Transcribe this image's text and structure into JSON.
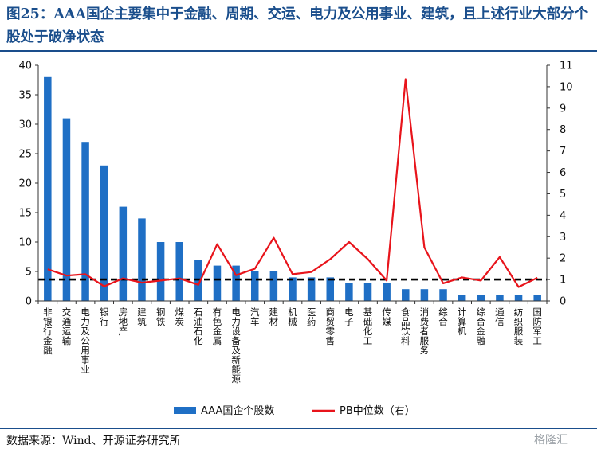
{
  "figure": {
    "title": "图25：AAA国企主要集中于金融、周期、交运、电力及公用事业、建筑，且上述行业大部分个股处于破净状态",
    "source": "数据来源：Wind、开源证券研究所",
    "watermark": "格隆汇"
  },
  "colors": {
    "bar": "#1f6fc5",
    "line": "#e8141b",
    "reference": "#000000",
    "title": "#1a4e8c"
  },
  "chart_data": {
    "type": "bar",
    "categories": [
      "非银行金融",
      "交通运输",
      "电力及公用事业",
      "银行",
      "房地产",
      "建筑",
      "钢铁",
      "煤炭",
      "石油石化",
      "有色金属",
      "电力设备及新能源",
      "汽车",
      "建材",
      "机械",
      "医药",
      "商贸零售",
      "电子",
      "基础化工",
      "传媒",
      "食品饮料",
      "消费者服务",
      "综合",
      "计算机",
      "综合金融",
      "通信",
      "纺织服装",
      "国防军工"
    ],
    "series": [
      {
        "name": "AAA国企个股数",
        "type": "bar",
        "axis": "left",
        "values": [
          38,
          31,
          27,
          23,
          16,
          14,
          10,
          10,
          7,
          6,
          6,
          5,
          5,
          4,
          4,
          4,
          3,
          3,
          3,
          2,
          2,
          2,
          1,
          1,
          1,
          1,
          1
        ]
      },
      {
        "name": "PB中位数（右）",
        "type": "line",
        "axis": "right",
        "values": [
          1.48,
          1.18,
          1.25,
          0.68,
          1.05,
          0.85,
          0.95,
          1.05,
          0.75,
          2.65,
          1.2,
          1.5,
          2.95,
          1.25,
          1.35,
          1.95,
          2.75,
          1.95,
          0.95,
          10.35,
          2.5,
          0.82,
          1.1,
          0.95,
          2.05,
          0.65,
          1.08
        ]
      }
    ],
    "reference_line": {
      "axis": "right",
      "value": 1.0,
      "style": "dashed"
    },
    "y_left": {
      "min": 0,
      "max": 40,
      "ticks": [
        "0",
        "5",
        "10",
        "15",
        "20",
        "25",
        "30",
        "35",
        "40"
      ]
    },
    "y_right": {
      "min": 0,
      "max": 11,
      "ticks": [
        "0",
        "1",
        "2",
        "3",
        "4",
        "5",
        "6",
        "7",
        "8",
        "9",
        "10",
        "11"
      ]
    },
    "legend_position": "bottom-center",
    "grid": false
  }
}
